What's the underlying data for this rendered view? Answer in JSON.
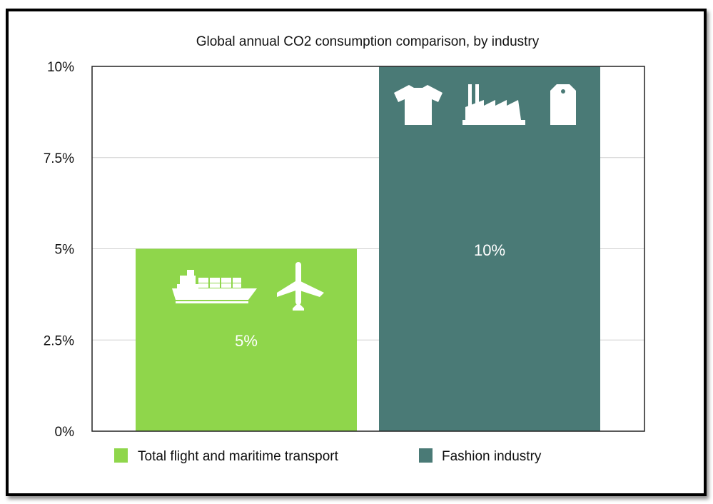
{
  "chart_data": {
    "type": "bar",
    "title": "Global annual CO2 consumption comparison, by industry",
    "categories": [
      "Total flight and maritime transport",
      "Fashion industry"
    ],
    "values": [
      5,
      10
    ],
    "data_labels": [
      "5%",
      "10%"
    ],
    "colors": [
      "#8fd64b",
      "#4a7a76"
    ],
    "ylim": [
      0,
      10
    ],
    "yticks": [
      0,
      2.5,
      5,
      7.5,
      10
    ],
    "ytick_labels": [
      "0%",
      "2.5%",
      "5%",
      "7.5%",
      "10%"
    ],
    "grid": true,
    "legend": {
      "placement": "bottom",
      "entries": [
        "Total flight and maritime transport",
        "Fashion industry"
      ]
    },
    "icons": [
      [
        "cargo-ship-icon",
        "airplane-icon"
      ],
      [
        "t-shirt-icon",
        "factory-icon",
        "price-tag-icon"
      ]
    ]
  }
}
